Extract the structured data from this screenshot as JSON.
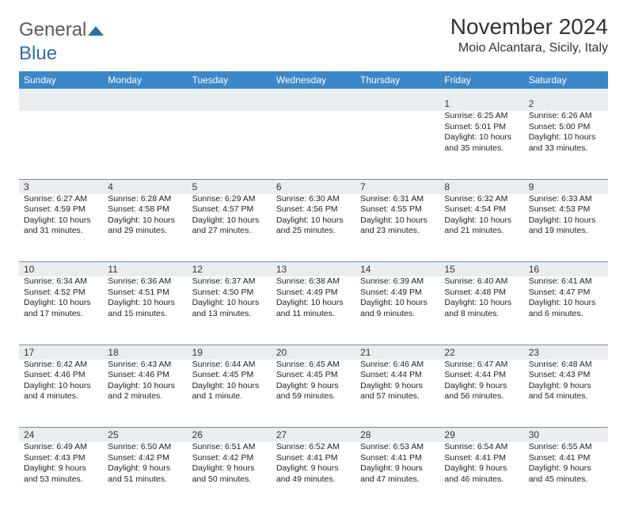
{
  "brand": {
    "part1": "General",
    "part2": "Blue"
  },
  "title": "November 2024",
  "location": "Moio Alcantara, Sicily, Italy",
  "colors": {
    "header_bg": "#3b87c8",
    "header_text": "#ffffff",
    "daynum_bg": "#e9edf0",
    "rule": "#7a8aa0",
    "text": "#222222",
    "brand_gray": "#5a5a5a",
    "brand_blue": "#2f6fa8"
  },
  "dow": [
    "Sunday",
    "Monday",
    "Tuesday",
    "Wednesday",
    "Thursday",
    "Friday",
    "Saturday"
  ],
  "weeks": [
    [
      null,
      null,
      null,
      null,
      null,
      {
        "n": "1",
        "sr": "Sunrise: 6:25 AM",
        "ss": "Sunset: 5:01 PM",
        "d1": "Daylight: 10 hours",
        "d2": "and 35 minutes."
      },
      {
        "n": "2",
        "sr": "Sunrise: 6:26 AM",
        "ss": "Sunset: 5:00 PM",
        "d1": "Daylight: 10 hours",
        "d2": "and 33 minutes."
      }
    ],
    [
      {
        "n": "3",
        "sr": "Sunrise: 6:27 AM",
        "ss": "Sunset: 4:59 PM",
        "d1": "Daylight: 10 hours",
        "d2": "and 31 minutes."
      },
      {
        "n": "4",
        "sr": "Sunrise: 6:28 AM",
        "ss": "Sunset: 4:58 PM",
        "d1": "Daylight: 10 hours",
        "d2": "and 29 minutes."
      },
      {
        "n": "5",
        "sr": "Sunrise: 6:29 AM",
        "ss": "Sunset: 4:57 PM",
        "d1": "Daylight: 10 hours",
        "d2": "and 27 minutes."
      },
      {
        "n": "6",
        "sr": "Sunrise: 6:30 AM",
        "ss": "Sunset: 4:56 PM",
        "d1": "Daylight: 10 hours",
        "d2": "and 25 minutes."
      },
      {
        "n": "7",
        "sr": "Sunrise: 6:31 AM",
        "ss": "Sunset: 4:55 PM",
        "d1": "Daylight: 10 hours",
        "d2": "and 23 minutes."
      },
      {
        "n": "8",
        "sr": "Sunrise: 6:32 AM",
        "ss": "Sunset: 4:54 PM",
        "d1": "Daylight: 10 hours",
        "d2": "and 21 minutes."
      },
      {
        "n": "9",
        "sr": "Sunrise: 6:33 AM",
        "ss": "Sunset: 4:53 PM",
        "d1": "Daylight: 10 hours",
        "d2": "and 19 minutes."
      }
    ],
    [
      {
        "n": "10",
        "sr": "Sunrise: 6:34 AM",
        "ss": "Sunset: 4:52 PM",
        "d1": "Daylight: 10 hours",
        "d2": "and 17 minutes."
      },
      {
        "n": "11",
        "sr": "Sunrise: 6:36 AM",
        "ss": "Sunset: 4:51 PM",
        "d1": "Daylight: 10 hours",
        "d2": "and 15 minutes."
      },
      {
        "n": "12",
        "sr": "Sunrise: 6:37 AM",
        "ss": "Sunset: 4:50 PM",
        "d1": "Daylight: 10 hours",
        "d2": "and 13 minutes."
      },
      {
        "n": "13",
        "sr": "Sunrise: 6:38 AM",
        "ss": "Sunset: 4:49 PM",
        "d1": "Daylight: 10 hours",
        "d2": "and 11 minutes."
      },
      {
        "n": "14",
        "sr": "Sunrise: 6:39 AM",
        "ss": "Sunset: 4:49 PM",
        "d1": "Daylight: 10 hours",
        "d2": "and 9 minutes."
      },
      {
        "n": "15",
        "sr": "Sunrise: 6:40 AM",
        "ss": "Sunset: 4:48 PM",
        "d1": "Daylight: 10 hours",
        "d2": "and 8 minutes."
      },
      {
        "n": "16",
        "sr": "Sunrise: 6:41 AM",
        "ss": "Sunset: 4:47 PM",
        "d1": "Daylight: 10 hours",
        "d2": "and 6 minutes."
      }
    ],
    [
      {
        "n": "17",
        "sr": "Sunrise: 6:42 AM",
        "ss": "Sunset: 4:46 PM",
        "d1": "Daylight: 10 hours",
        "d2": "and 4 minutes."
      },
      {
        "n": "18",
        "sr": "Sunrise: 6:43 AM",
        "ss": "Sunset: 4:46 PM",
        "d1": "Daylight: 10 hours",
        "d2": "and 2 minutes."
      },
      {
        "n": "19",
        "sr": "Sunrise: 6:44 AM",
        "ss": "Sunset: 4:45 PM",
        "d1": "Daylight: 10 hours",
        "d2": "and 1 minute."
      },
      {
        "n": "20",
        "sr": "Sunrise: 6:45 AM",
        "ss": "Sunset: 4:45 PM",
        "d1": "Daylight: 9 hours",
        "d2": "and 59 minutes."
      },
      {
        "n": "21",
        "sr": "Sunrise: 6:46 AM",
        "ss": "Sunset: 4:44 PM",
        "d1": "Daylight: 9 hours",
        "d2": "and 57 minutes."
      },
      {
        "n": "22",
        "sr": "Sunrise: 6:47 AM",
        "ss": "Sunset: 4:44 PM",
        "d1": "Daylight: 9 hours",
        "d2": "and 56 minutes."
      },
      {
        "n": "23",
        "sr": "Sunrise: 6:48 AM",
        "ss": "Sunset: 4:43 PM",
        "d1": "Daylight: 9 hours",
        "d2": "and 54 minutes."
      }
    ],
    [
      {
        "n": "24",
        "sr": "Sunrise: 6:49 AM",
        "ss": "Sunset: 4:43 PM",
        "d1": "Daylight: 9 hours",
        "d2": "and 53 minutes."
      },
      {
        "n": "25",
        "sr": "Sunrise: 6:50 AM",
        "ss": "Sunset: 4:42 PM",
        "d1": "Daylight: 9 hours",
        "d2": "and 51 minutes."
      },
      {
        "n": "26",
        "sr": "Sunrise: 6:51 AM",
        "ss": "Sunset: 4:42 PM",
        "d1": "Daylight: 9 hours",
        "d2": "and 50 minutes."
      },
      {
        "n": "27",
        "sr": "Sunrise: 6:52 AM",
        "ss": "Sunset: 4:41 PM",
        "d1": "Daylight: 9 hours",
        "d2": "and 49 minutes."
      },
      {
        "n": "28",
        "sr": "Sunrise: 6:53 AM",
        "ss": "Sunset: 4:41 PM",
        "d1": "Daylight: 9 hours",
        "d2": "and 47 minutes."
      },
      {
        "n": "29",
        "sr": "Sunrise: 6:54 AM",
        "ss": "Sunset: 4:41 PM",
        "d1": "Daylight: 9 hours",
        "d2": "and 46 minutes."
      },
      {
        "n": "30",
        "sr": "Sunrise: 6:55 AM",
        "ss": "Sunset: 4:41 PM",
        "d1": "Daylight: 9 hours",
        "d2": "and 45 minutes."
      }
    ]
  ]
}
